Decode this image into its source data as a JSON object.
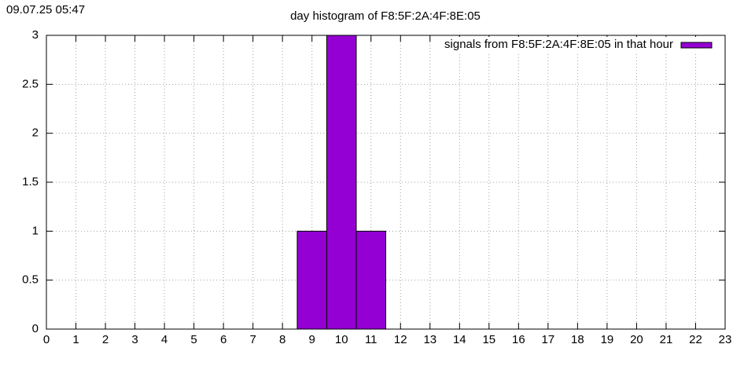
{
  "chart_data": {
    "type": "bar",
    "timestamp": "09.07.25 05:47",
    "title": "day histogram of F8:5F:2A:4F:8E:05",
    "x": [
      9,
      10,
      11
    ],
    "series": [
      {
        "name": "signals from F8:5F:2A:4F:8E:05 in that hour",
        "color": "#9400d3",
        "values": [
          1,
          3,
          1
        ]
      }
    ],
    "xlim": [
      0,
      23
    ],
    "xticks": [
      0,
      1,
      2,
      3,
      4,
      5,
      6,
      7,
      8,
      9,
      10,
      11,
      12,
      13,
      14,
      15,
      16,
      17,
      18,
      19,
      20,
      21,
      22,
      23
    ],
    "ylim": [
      0,
      3
    ],
    "yticks": [
      0,
      0.5,
      1,
      1.5,
      2,
      2.5,
      3
    ],
    "grid": true,
    "legend": "top right"
  }
}
